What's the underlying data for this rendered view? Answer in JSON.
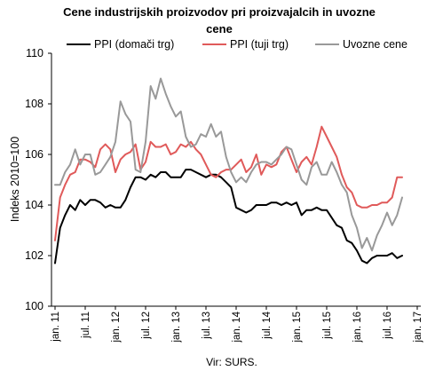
{
  "chart_data": {
    "type": "line",
    "title_line1": "Cene industrijskih proizvodov pri proizvajalcih in uvozne",
    "title_line2": "cene",
    "ylabel": "Indeks 2010=100",
    "source": "Vir: SURS.",
    "ylim": [
      100,
      110
    ],
    "y_ticks": [
      "100",
      "102",
      "104",
      "106",
      "108",
      "110"
    ],
    "x_tick_labels": [
      "jan. 11",
      "jul. 11",
      "jan. 12",
      "jul. 12",
      "jan. 13",
      "jul. 13",
      "jan. 14",
      "jul. 14",
      "jan. 15",
      "jul. 15",
      "jan. 16",
      "jul. 16",
      "jan. 17"
    ],
    "legend_position": "top",
    "grid": false,
    "x": [
      "2011-01",
      "2011-02",
      "2011-03",
      "2011-04",
      "2011-05",
      "2011-06",
      "2011-07",
      "2011-08",
      "2011-09",
      "2011-10",
      "2011-11",
      "2011-12",
      "2012-01",
      "2012-02",
      "2012-03",
      "2012-04",
      "2012-05",
      "2012-06",
      "2012-07",
      "2012-08",
      "2012-09",
      "2012-10",
      "2012-11",
      "2012-12",
      "2013-01",
      "2013-02",
      "2013-03",
      "2013-04",
      "2013-05",
      "2013-06",
      "2013-07",
      "2013-08",
      "2013-09",
      "2013-10",
      "2013-11",
      "2013-12",
      "2014-01",
      "2014-02",
      "2014-03",
      "2014-04",
      "2014-05",
      "2014-06",
      "2014-07",
      "2014-08",
      "2014-09",
      "2014-10",
      "2014-11",
      "2014-12",
      "2015-01",
      "2015-02",
      "2015-03",
      "2015-04",
      "2015-05",
      "2015-06",
      "2015-07",
      "2015-08",
      "2015-09",
      "2015-10",
      "2015-11",
      "2015-12",
      "2016-01",
      "2016-02",
      "2016-03",
      "2016-04",
      "2016-05",
      "2016-06",
      "2016-07",
      "2016-08",
      "2016-09",
      "2016-10"
    ],
    "series": [
      {
        "name": "PPI (domači trg)",
        "color": "#000000",
        "values": [
          101.7,
          103.1,
          103.6,
          104.0,
          103.8,
          104.2,
          104.0,
          104.2,
          104.2,
          104.1,
          103.9,
          104.0,
          103.9,
          103.9,
          104.2,
          104.7,
          105.1,
          105.1,
          105.0,
          105.2,
          105.1,
          105.3,
          105.3,
          105.1,
          105.1,
          105.1,
          105.4,
          105.4,
          105.3,
          105.2,
          105.1,
          105.2,
          105.2,
          105.1,
          104.9,
          104.7,
          103.9,
          103.8,
          103.7,
          103.8,
          104.0,
          104.0,
          104.0,
          104.1,
          104.1,
          104.0,
          104.1,
          104.0,
          104.1,
          103.6,
          103.8,
          103.8,
          103.9,
          103.8,
          103.8,
          103.5,
          103.2,
          103.1,
          102.6,
          102.5,
          102.2,
          101.8,
          101.7,
          101.9,
          102.0,
          102.0,
          102.0,
          102.1,
          101.9,
          102.0
        ]
      },
      {
        "name": "PPI (tuji trg)",
        "color": "#e05a5a",
        "values": [
          102.6,
          104.3,
          104.8,
          105.2,
          105.3,
          105.8,
          105.8,
          105.7,
          105.5,
          106.2,
          106.4,
          106.2,
          105.3,
          105.8,
          106.0,
          106.1,
          106.4,
          105.4,
          105.7,
          106.5,
          106.3,
          106.3,
          106.4,
          106.0,
          106.1,
          106.4,
          106.3,
          106.5,
          106.2,
          106.0,
          105.6,
          105.2,
          105.1,
          105.3,
          105.4,
          105.4,
          105.6,
          105.8,
          105.3,
          105.5,
          106.0,
          105.2,
          105.6,
          105.5,
          105.6,
          106.1,
          106.3,
          105.8,
          105.3,
          105.7,
          105.9,
          105.6,
          106.3,
          107.1,
          106.7,
          106.3,
          105.9,
          105.2,
          104.7,
          104.5,
          104.0,
          103.9,
          103.9,
          104.0,
          104.0,
          104.1,
          104.1,
          104.3,
          105.1,
          105.1
        ]
      },
      {
        "name": "Uvozne cene",
        "color": "#999999",
        "values": [
          104.8,
          104.8,
          105.3,
          105.6,
          106.2,
          105.6,
          106.0,
          106.0,
          105.2,
          105.3,
          105.6,
          105.9,
          106.5,
          108.1,
          107.6,
          107.3,
          105.4,
          105.3,
          106.5,
          108.7,
          108.2,
          109.0,
          108.4,
          107.9,
          107.5,
          107.7,
          106.7,
          106.3,
          106.4,
          106.8,
          106.7,
          107.2,
          106.7,
          106.9,
          105.9,
          105.3,
          104.9,
          105.1,
          104.9,
          105.3,
          105.6,
          105.7,
          105.7,
          105.6,
          105.8,
          106.0,
          106.3,
          106.2,
          105.6,
          105.0,
          104.8,
          105.5,
          105.7,
          105.2,
          105.2,
          105.7,
          105.3,
          104.8,
          104.5,
          103.6,
          103.1,
          102.3,
          102.7,
          102.2,
          102.8,
          103.2,
          103.7,
          103.2,
          103.6,
          104.3
        ]
      }
    ]
  }
}
